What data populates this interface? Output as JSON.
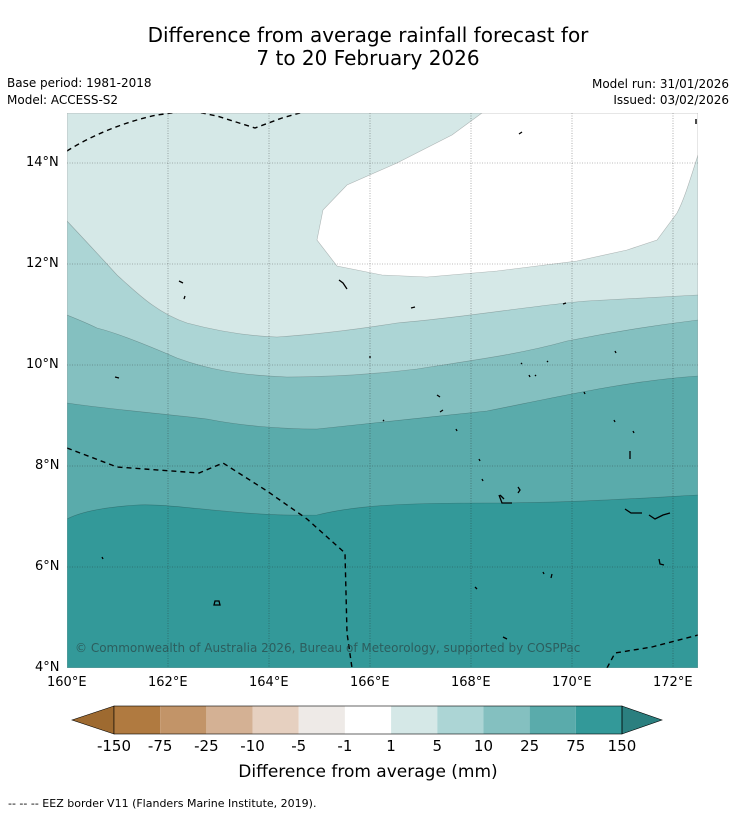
{
  "title_line1": "Difference from average rainfall forecast for",
  "title_line2": "7 to 20 February 2026",
  "meta": {
    "base_period": "Base period: 1981-2018",
    "model": "Model: ACCESS-S2",
    "model_run": "Model run: 31/01/2026",
    "issued": "Issued: 03/02/2026"
  },
  "credit": "© Commonwealth of Australia 2026, Bureau of Meteorology, supported by COSPPac",
  "lat_labels": [
    "14°N",
    "12°N",
    "10°N",
    "8°N",
    "6°N",
    "4°N"
  ],
  "lon_labels": [
    "160°E",
    "162°E",
    "164°E",
    "166°E",
    "168°E",
    "170°E",
    "172°E"
  ],
  "colorbar": {
    "ticks": [
      "-150",
      "-75",
      "-25",
      "-10",
      "-5",
      "-1",
      "1",
      "5",
      "10",
      "25",
      "75",
      "150"
    ],
    "colors": [
      "#b07a40",
      "#c29468",
      "#d4b194",
      "#e6d0c0",
      "#eeeae7",
      "#ffffff",
      "#d5e8e7",
      "#acd5d5",
      "#84c0c0",
      "#5aabab",
      "#339999"
    ],
    "under_color": "#9e6a30",
    "over_color": "#2b7f7f",
    "label": "Difference from average (mm)"
  },
  "footer": "--  --  -- EEZ border V11 (Flanders Marine Institute, 2019)."
}
